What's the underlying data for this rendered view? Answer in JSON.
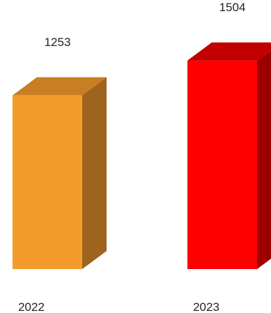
{
  "chart_data": {
    "type": "bar",
    "categories": [
      "2022",
      "2023"
    ],
    "values": [
      1253,
      1504
    ],
    "value_labels": [
      "1253",
      "1504"
    ],
    "style": "3d-column",
    "colors": [
      {
        "front": "#F39C2B",
        "top": "#C97E22",
        "side": "#9E641E"
      },
      {
        "front": "#FF0000",
        "top": "#C20000",
        "side": "#9E0000"
      }
    ],
    "grid": false,
    "legend": "none"
  }
}
